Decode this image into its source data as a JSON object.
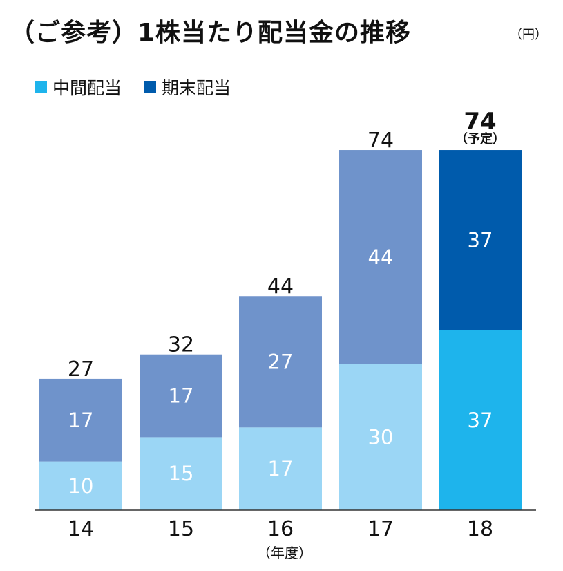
{
  "title": "（ご参考）1株当たり配当金の推移",
  "unit": "（円）",
  "legend": [
    {
      "label": "中間配当",
      "color": "#1eb4ec"
    },
    {
      "label": "期末配当",
      "color": "#005bac"
    }
  ],
  "chart_data": {
    "type": "bar",
    "stacked": true,
    "categories": [
      "14",
      "15",
      "16",
      "17",
      "18"
    ],
    "xlabel_note": "（年度）",
    "series": [
      {
        "name": "中間配当",
        "values": [
          10,
          15,
          17,
          30,
          37
        ]
      },
      {
        "name": "期末配当",
        "values": [
          17,
          17,
          27,
          44,
          37
        ]
      }
    ],
    "totals": [
      27,
      32,
      44,
      74,
      74
    ],
    "forecast_note": "（予定）",
    "ylim": [
      0,
      92
    ],
    "grid": false,
    "legend_position": "top-left",
    "colors": {
      "interim_actual": "#9bd6f5",
      "year_end_actual": "#6f93cb",
      "interim_forecast": "#1eb4ec",
      "year_end_forecast": "#005bac",
      "axis": "#333333"
    }
  }
}
